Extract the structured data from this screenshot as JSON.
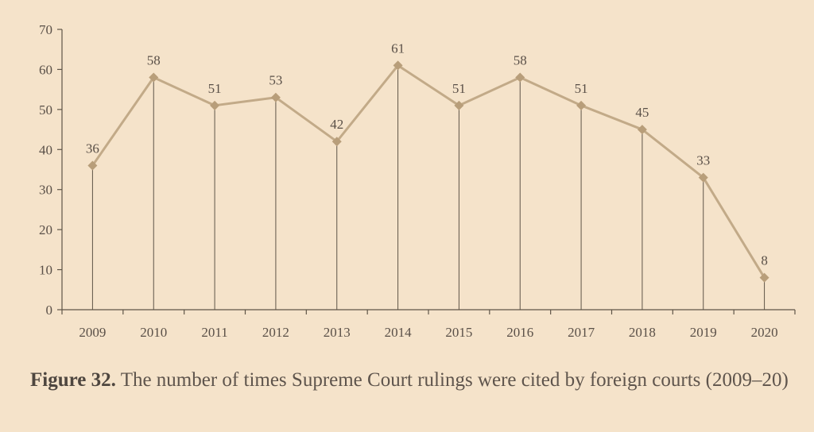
{
  "caption": {
    "prefix": "Figure 32.",
    "text": "The number of times Supreme Court rulings were cited by foreign courts (2009–20)"
  },
  "colors": {
    "background": "#f5e3ca",
    "line": "#c2aa88",
    "marker": "#b89e7a",
    "axis": "#5f5548",
    "text": "#5a5048"
  },
  "chart_data": {
    "type": "line",
    "title": "",
    "xlabel": "",
    "ylabel": "",
    "categories": [
      "2009",
      "2010",
      "2011",
      "2012",
      "2013",
      "2014",
      "2015",
      "2016",
      "2017",
      "2018",
      "2019",
      "2020"
    ],
    "values": [
      36,
      58,
      51,
      53,
      42,
      61,
      51,
      58,
      51,
      45,
      33,
      8
    ],
    "data_labels": [
      "36",
      "58",
      "51",
      "53",
      "42",
      "61",
      "51",
      "58",
      "51",
      "45",
      "33",
      "8"
    ],
    "yticks": [
      "0",
      "10",
      "20",
      "30",
      "40",
      "50",
      "60",
      "70"
    ],
    "ylim": [
      0,
      70
    ],
    "marker": "diamond",
    "drop_lines": true,
    "grid": false,
    "legend": "none"
  }
}
